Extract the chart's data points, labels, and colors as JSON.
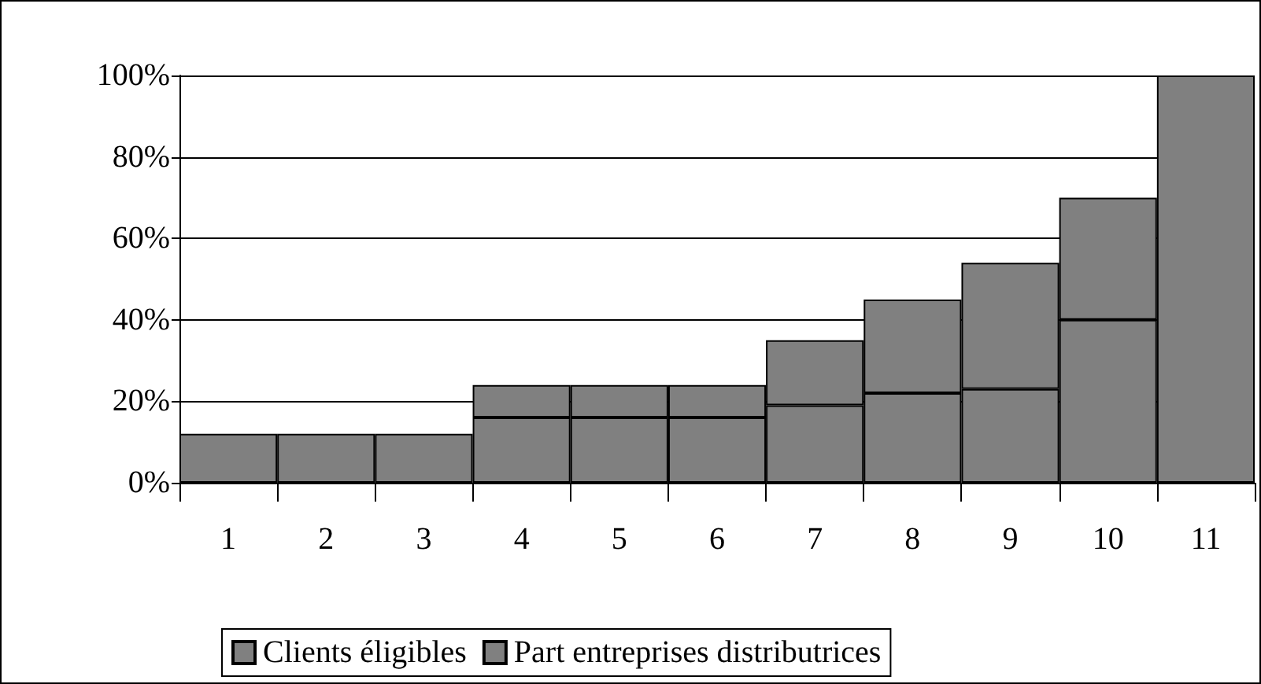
{
  "chart_data": {
    "type": "bar",
    "stacked": true,
    "categories": [
      "1",
      "2",
      "3",
      "4",
      "5",
      "6",
      "7",
      "8",
      "9",
      "10",
      "11"
    ],
    "series": [
      {
        "name": "Clients éligibles",
        "color": "#808080",
        "values": [
          12,
          12,
          12,
          16,
          16,
          16,
          19,
          22,
          23,
          40,
          100
        ]
      },
      {
        "name": "Part entreprises distributrices",
        "color": "#808080",
        "values": [
          0,
          0,
          0,
          8,
          8,
          8,
          16,
          23,
          31,
          30,
          0
        ]
      }
    ],
    "ylim": [
      0,
      100
    ],
    "yticks": [
      {
        "value": 0,
        "label": "0%"
      },
      {
        "value": 20,
        "label": "20%"
      },
      {
        "value": 40,
        "label": "40%"
      },
      {
        "value": 60,
        "label": "60%"
      },
      {
        "value": 80,
        "label": "80%"
      },
      {
        "value": 100,
        "label": "100%"
      }
    ],
    "grid": "y",
    "legend": "bottom"
  }
}
